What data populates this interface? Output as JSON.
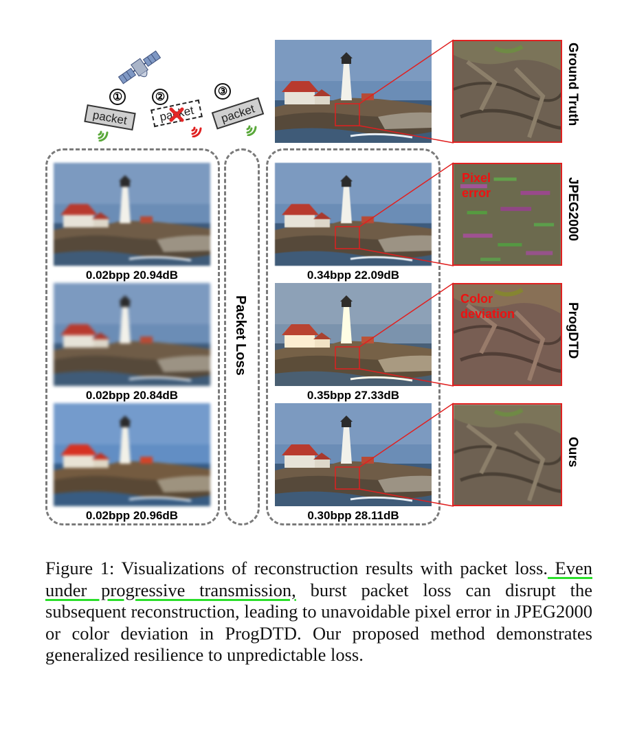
{
  "diagram": {
    "packets": [
      {
        "number": "①",
        "label": "packet",
        "status": "received"
      },
      {
        "number": "②",
        "label": "packet",
        "status": "lost"
      },
      {
        "number": "③",
        "label": "packet",
        "status": "received"
      }
    ],
    "packet_loss_label": "Packet Loss",
    "rows": [
      {
        "method": "Ground Truth"
      },
      {
        "method": "JPEG2000",
        "annotation": "Pixel error",
        "annotation_lines": [
          "Pixel",
          "error"
        ]
      },
      {
        "method": "ProgDTD",
        "annotation": "Color deviation",
        "annotation_lines": [
          "Color",
          "deviation"
        ]
      },
      {
        "method": "Ours"
      }
    ],
    "left_column_metrics": [
      "0.02bpp  20.94dB",
      "0.02bpp  20.84dB",
      "0.02bpp  20.96dB"
    ],
    "right_column_metrics": [
      "0.34bpp  22.09dB",
      "0.35bpp  27.33dB",
      "0.30bpp  28.11dB"
    ]
  },
  "caption": {
    "prefix": "Figure 1: Visualizations of reconstruction results with packet loss.",
    "highlight": " Even under progressive transmission,",
    "rest": " burst packet loss can disrupt the subsequent reconstruction, leading to unavoidable pixel error in JPEG2000 or color deviation in ProgDTD. Our proposed method demonstrates generalized resilience to unpredictable loss."
  },
  "colors": {
    "dashed_border": "#7a7a7a",
    "crop_red": "#e02020",
    "highlight_green": "#2adf2a",
    "wifi_green": "#5aa83a",
    "wifi_red": "#e02020"
  }
}
